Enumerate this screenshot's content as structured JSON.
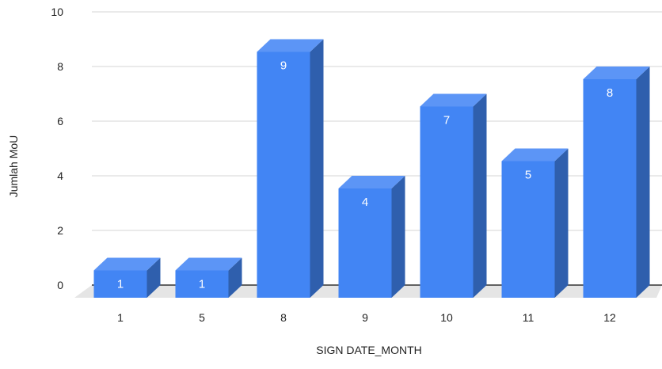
{
  "chart_data": {
    "type": "bar",
    "title": "",
    "xlabel": "SIGN DATE_MONTH",
    "ylabel": "Jumlah MoU",
    "categories": [
      "1",
      "5",
      "8",
      "9",
      "10",
      "11",
      "12"
    ],
    "values": [
      1,
      1,
      9,
      4,
      7,
      5,
      8
    ],
    "data_labels": [
      "1",
      "1",
      "9",
      "4",
      "7",
      "5",
      "8"
    ],
    "ylim": [
      0,
      10
    ],
    "yticks": [
      "0",
      "2",
      "4",
      "6",
      "8",
      "10"
    ],
    "grid": true,
    "style": "3d",
    "colors": {
      "bar_front": "#4285f4",
      "bar_top": "#5c95f6",
      "bar_side": "#2f5fad",
      "floor": "#e5e5e5",
      "grid": "#d6d6d6",
      "baseline": "#333333",
      "label": "#ffffff",
      "axis_text": "#222222"
    }
  }
}
